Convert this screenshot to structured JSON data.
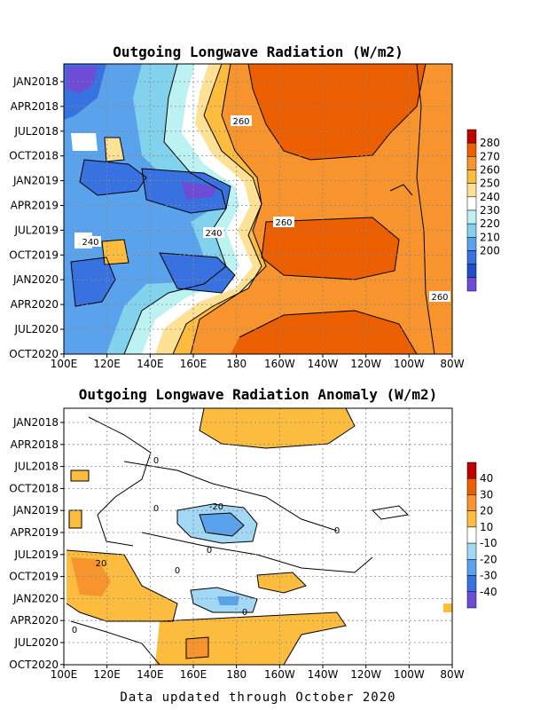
{
  "footer": "Data updated through October 2020",
  "chart_data": [
    {
      "type": "heatmap",
      "title": "Outgoing Longwave Radiation (W/m2)",
      "x_tick_labels": [
        "100E",
        "120E",
        "140E",
        "160E",
        "180",
        "160W",
        "140W",
        "120W",
        "100W",
        "80W"
      ],
      "y_tick_labels": [
        "JAN2018",
        "APR2018",
        "JUL2018",
        "OCT2018",
        "JAN2019",
        "APR2019",
        "JUL2019",
        "OCT2019",
        "JAN2020",
        "APR2020",
        "JUL2020",
        "OCT2020"
      ],
      "colorbar_labels": [
        "280",
        "270",
        "260",
        "250",
        "240",
        "230",
        "220",
        "210",
        "200"
      ],
      "colorbar_colors": [
        "#c00000",
        "#ec5f00",
        "#f7942d",
        "#fcbc3e",
        "#fde195",
        "#ffffff",
        "#bdf2f2",
        "#82d2ee",
        "#5ba2ec",
        "#3871e0",
        "#1f4fc8",
        "#6f4cd6"
      ],
      "contour_labels": [
        "260",
        "260",
        "240",
        "240",
        "260"
      ],
      "grid": true
    },
    {
      "type": "heatmap",
      "title": "Outgoing Longwave Radiation Anomaly (W/m2)",
      "x_tick_labels": [
        "100E",
        "120E",
        "140E",
        "160E",
        "180",
        "160W",
        "140W",
        "120W",
        "100W",
        "80W"
      ],
      "y_tick_labels": [
        "JAN2018",
        "APR2018",
        "JUL2018",
        "OCT2018",
        "JAN2019",
        "APR2019",
        "JUL2019",
        "OCT2019",
        "JAN2020",
        "APR2020",
        "JUL2020",
        "OCT2020"
      ],
      "colorbar_labels": [
        "40",
        "30",
        "20",
        "10",
        "-10",
        "-20",
        "-30",
        "-40"
      ],
      "colorbar_colors": [
        "#c00000",
        "#ec5f00",
        "#f7942d",
        "#fcbc3e",
        "#ffffff",
        "#a3d8f5",
        "#5ba2ec",
        "#3871e0",
        "#6f4cd6"
      ],
      "contour_labels": [
        "0",
        "0",
        "-20",
        "0",
        "0",
        "0",
        "20",
        "0",
        "0"
      ],
      "grid": true
    }
  ]
}
